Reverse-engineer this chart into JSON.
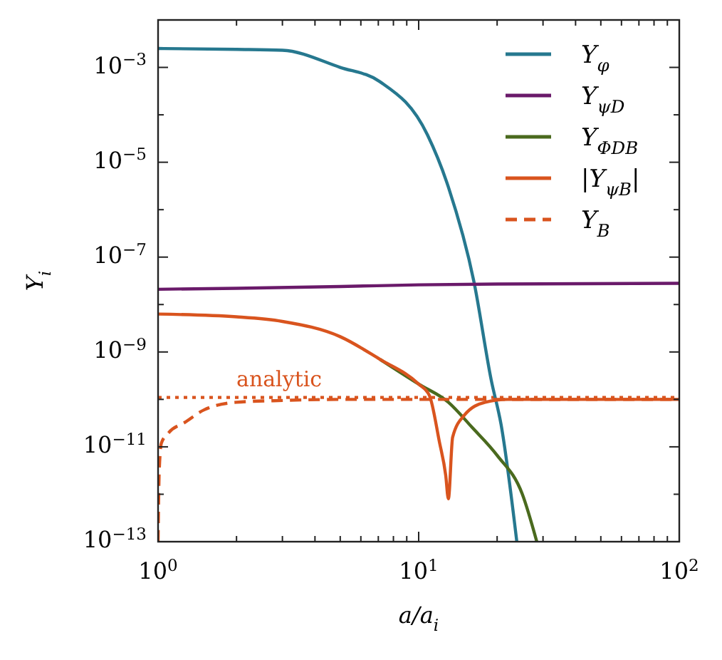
{
  "chart_data": {
    "type": "line",
    "xlabel": "a/a$_{i}$",
    "ylabel": "Y$_{i}$",
    "log": "xy",
    "xlim": [
      1,
      100
    ],
    "ylim": [
      1e-13,
      0.01
    ],
    "xticks": [
      {
        "value": 1,
        "label": "10$^{0}$"
      },
      {
        "value": 2,
        "label": null
      },
      {
        "value": 3,
        "label": null
      },
      {
        "value": 4,
        "label": null
      },
      {
        "value": 5,
        "label": null
      },
      {
        "value": 6,
        "label": null
      },
      {
        "value": 7,
        "label": null
      },
      {
        "value": 8,
        "label": null
      },
      {
        "value": 9,
        "label": null
      },
      {
        "value": 10,
        "label": "10$^{1}$"
      },
      {
        "value": 20,
        "label": null
      },
      {
        "value": 30,
        "label": null
      },
      {
        "value": 40,
        "label": null
      },
      {
        "value": 50,
        "label": null
      },
      {
        "value": 60,
        "label": null
      },
      {
        "value": 70,
        "label": null
      },
      {
        "value": 80,
        "label": null
      },
      {
        "value": 90,
        "label": null
      },
      {
        "value": 100,
        "label": "10$^{2}$"
      }
    ],
    "yticks": [
      {
        "value": 1e-13,
        "label": "10$^{−13}$"
      },
      {
        "value": 1e-12,
        "label": null
      },
      {
        "value": 1e-11,
        "label": "10$^{−11}$"
      },
      {
        "value": 1e-10,
        "label": null
      },
      {
        "value": 1e-09,
        "label": "10$^{−9}$"
      },
      {
        "value": 1e-08,
        "label": null
      },
      {
        "value": 1e-07,
        "label": "10$^{−7}$"
      },
      {
        "value": 1e-06,
        "label": null
      },
      {
        "value": 1e-05,
        "label": "10$^{−5}$"
      },
      {
        "value": 0.0001,
        "label": null
      },
      {
        "value": 0.001,
        "label": "10$^{−3}$"
      },
      {
        "value": 0.01,
        "label": null
      }
    ],
    "grid": false,
    "legend": "top right",
    "marker": "none",
    "series": [
      {
        "name": "Y$_{φ}$",
        "color": "#26788f",
        "line_style": "solid",
        "x": [
          1,
          2,
          3,
          5,
          7.1,
          10.8,
          13,
          16.3,
          19,
          20.7,
          23.8
        ],
        "values": [
          0.0025,
          0.0024,
          0.0023,
          0.001,
          0.0005,
          3.8e-05,
          3e-06,
          3e-08,
          2.5e-10,
          3e-11,
          1e-13
        ]
      },
      {
        "name": "Y$_{ψD}$",
        "color": "#6a1a6a",
        "line_style": "solid",
        "x": [
          1,
          2,
          5,
          10,
          20,
          100
        ],
        "values": [
          2.1e-08,
          2.2e-08,
          2.4e-08,
          2.6e-08,
          2.7e-08,
          2.8e-08
        ]
      },
      {
        "name": "Y$_{ΦDB}$",
        "color": "#4a6a1e",
        "line_style": "solid",
        "x": [
          7.1,
          10,
          13,
          16,
          20,
          25,
          28.4
        ],
        "values": [
          7e-10,
          2.1e-10,
          8.7e-11,
          2.6e-11,
          6.6e-12,
          1e-12,
          1e-13
        ]
      },
      {
        "name": "|Y$_{ψB}$|",
        "color": "#d9541e",
        "line_style": "solid",
        "x": [
          1,
          2,
          3,
          5,
          7.1,
          10,
          11,
          12,
          12.7,
          13,
          13.5,
          15,
          18,
          22,
          30,
          100
        ],
        "values": [
          6.3e-09,
          5.5e-09,
          4.4e-09,
          2.1e-09,
          7e-10,
          2.1e-10,
          1.2e-10,
          1.3e-11,
          2.5e-12,
          8e-13,
          1.6e-11,
          4.7e-11,
          8.7e-11,
          1e-10,
          1e-10,
          1e-10
        ]
      },
      {
        "name": "Y$_{B}$",
        "color": "#d9541e",
        "line_style": "dashed",
        "x": [
          1,
          1.01,
          1.03,
          1.1,
          1.27,
          1.5,
          2,
          3,
          5,
          100
        ],
        "values": [
          1e-13,
          3e-12,
          1.2e-11,
          2e-11,
          3.3e-11,
          6e-11,
          8.7e-11,
          9.5e-11,
          1e-10,
          1e-10
        ]
      }
    ],
    "ref_lines": [
      {
        "axis": "y",
        "value": 1.1e-10,
        "label": "analytic",
        "color": "#d9541e",
        "line_style": "dotted"
      }
    ]
  }
}
